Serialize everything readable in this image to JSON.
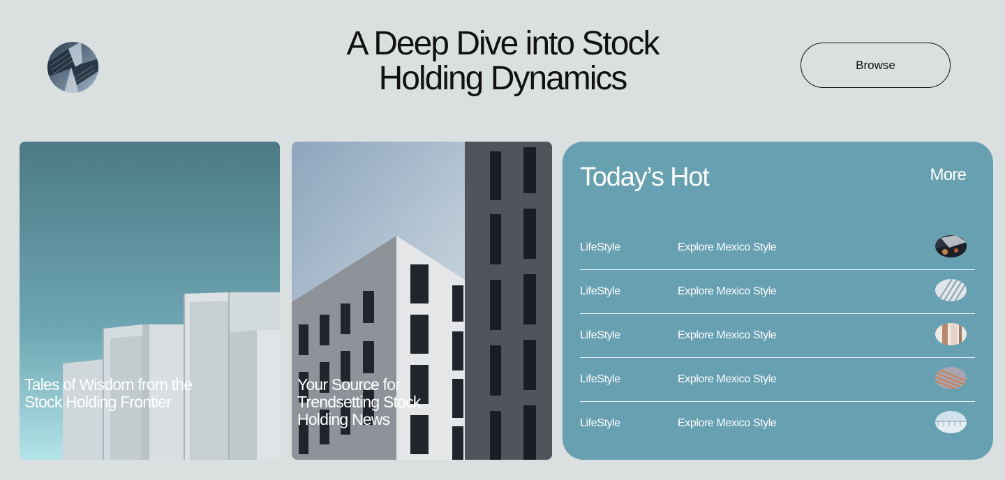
{
  "header": {
    "title_line1": "A Deep Dive into Stock",
    "title_line2": "Holding Dynamics",
    "browse_label": "Browse"
  },
  "cards": [
    {
      "caption_line1": "Tales of Wisdom from the",
      "caption_line2": "Stock Holding Frontier"
    },
    {
      "caption_line1": "Your Source for",
      "caption_line2": "Trendsetting Stock",
      "caption_line3": "Holding News"
    }
  ],
  "hot": {
    "title": "Today’s Hot",
    "more_label": "More",
    "items": [
      {
        "category": "LifeStyle",
        "name": "Explore Mexico Style"
      },
      {
        "category": "LifeStyle",
        "name": "Explore Mexico Style"
      },
      {
        "category": "LifeStyle",
        "name": "Explore Mexico Style"
      },
      {
        "category": "LifeStyle",
        "name": "Explore Mexico Style"
      },
      {
        "category": "LifeStyle",
        "name": "Explore Mexico Style"
      }
    ]
  },
  "colors": {
    "background": "#d9e0df",
    "panel": "#66a0b1",
    "text": "#111111"
  }
}
